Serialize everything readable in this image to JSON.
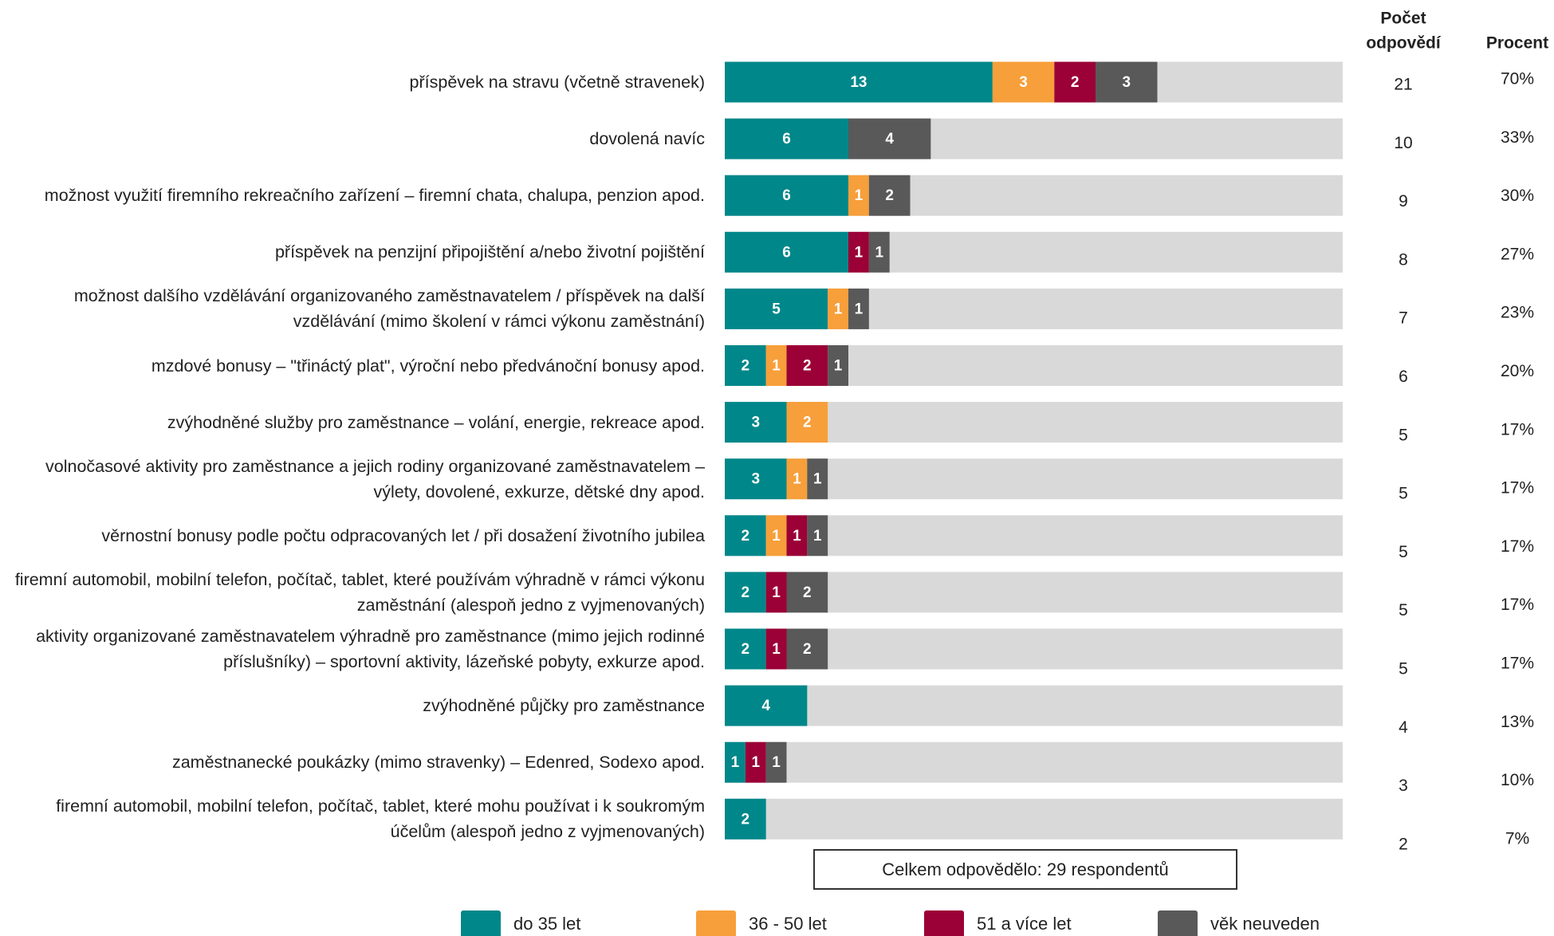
{
  "chart_data": {
    "type": "stacked-bar-horizontal",
    "categories": [
      "příspěvek na stravu (včetně stravenek)",
      "dovolená navíc",
      "možnost využití firemního rekreačního zařízení – firemní chata, chalupa, penzion apod.",
      "příspěvek na penzijní připojištění a/nebo životní pojištění",
      "možnost dalšího vzdělávání organizovaného zaměstnavatelem / příspěvek na další vzdělávání (mimo školení v rámci výkonu zaměstnání)",
      "mzdové bonusy – \"třináctý plat\", výroční nebo předvánoční bonusy apod.",
      "zvýhodněné služby pro zaměstnance – volání, energie, rekreace apod.",
      "volnočasové aktivity pro zaměstnance a jejich rodiny organizované zaměstnavatelem – výlety, dovolené, exkurze, dětské dny apod.",
      "věrnostní bonusy podle počtu odpracovaných let / při dosažení životního jubilea",
      "firemní automobil, mobilní telefon, počítač, tablet, které používám výhradně v rámci výkonu zaměstnání (alespoň jedno z vyjmenovaných)",
      "aktivity organizované zaměstnavatelem výhradně pro zaměstnance (mimo jejich rodinné příslušníky) – sportovní aktivity, lázeňské pobyty, exkurze apod.",
      "zvýhodněné půjčky pro zaměstnance",
      "zaměstnanecké poukázky (mimo stravenky) – Edenred, Sodexo apod.",
      "firemní automobil, mobilní telefon, počítač, tablet, které mohu používat i k soukromým účelům (alespoň jedno z vyjmenovaných)"
    ],
    "series": [
      {
        "name": "do 35 let",
        "color": "#00878a",
        "values": [
          13,
          6,
          6,
          6,
          5,
          2,
          3,
          3,
          2,
          2,
          2,
          4,
          1,
          2
        ]
      },
      {
        "name": "36 - 50 let",
        "color": "#f79f3a",
        "values": [
          3,
          null,
          1,
          null,
          1,
          1,
          2,
          1,
          1,
          null,
          null,
          null,
          null,
          null
        ]
      },
      {
        "name": "51 a více let",
        "color": "#9b0036",
        "values": [
          2,
          null,
          null,
          1,
          null,
          2,
          null,
          null,
          1,
          1,
          1,
          null,
          1,
          null
        ]
      },
      {
        "name": "věk neuveden",
        "color": "#595959",
        "values": [
          3,
          4,
          2,
          1,
          1,
          1,
          null,
          1,
          1,
          2,
          2,
          null,
          1,
          null
        ]
      }
    ],
    "xlim": [
      0,
      30
    ],
    "background_color": "#d9d9d9",
    "count": {
      "header": [
        "Počet",
        "odpovědí"
      ],
      "values": [
        21,
        10,
        9,
        8,
        7,
        6,
        5,
        5,
        5,
        5,
        5,
        4,
        3,
        2
      ]
    },
    "percent": {
      "header": "Procent",
      "values": [
        70,
        33,
        30,
        27,
        23,
        20,
        17,
        17,
        17,
        17,
        17,
        13,
        10,
        7
      ],
      "value_labels": [
        "70%",
        "33%",
        "30%",
        "27%",
        "23%",
        "20%",
        "17%",
        "17%",
        "17%",
        "17%",
        "17%",
        "13%",
        "10%",
        "7%"
      ]
    },
    "note": "Celkem odpovědělo:  29 respondentů"
  }
}
